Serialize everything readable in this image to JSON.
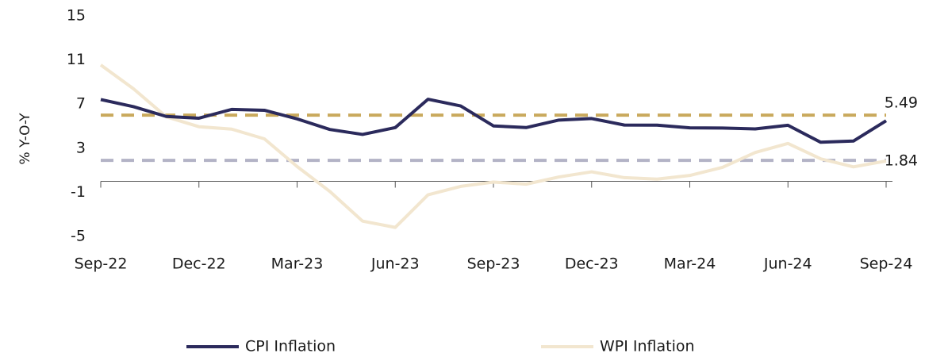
{
  "chart_data": {
    "type": "line",
    "y_label": "% Y-O-Y",
    "categories": [
      "Sep-22",
      null,
      null,
      "Dec-22",
      null,
      null,
      "Mar-23",
      null,
      null,
      "Jun-23",
      null,
      null,
      "Sep-23",
      null,
      null,
      "Dec-23",
      null,
      null,
      "Mar-24",
      null,
      null,
      "Jun-24",
      null,
      null,
      "Sep-24"
    ],
    "series": [
      {
        "name": "CPI Inflation",
        "color": "#2b2a5c",
        "values": [
          7.41,
          6.77,
          5.88,
          5.72,
          6.52,
          6.44,
          5.66,
          4.7,
          4.25,
          4.87,
          7.44,
          6.83,
          5.02,
          4.87,
          5.55,
          5.69,
          5.1,
          5.09,
          4.85,
          4.83,
          4.75,
          5.08,
          3.54,
          3.65,
          5.49
        ]
      },
      {
        "name": "WPI Inflation",
        "color": "#f2e6cf",
        "values": [
          10.55,
          8.39,
          5.85,
          4.95,
          4.73,
          3.85,
          1.34,
          -0.92,
          -3.61,
          -4.18,
          -1.23,
          -0.46,
          -0.07,
          -0.26,
          0.39,
          0.86,
          0.33,
          0.2,
          0.53,
          1.26,
          2.61,
          3.43,
          2.04,
          1.31,
          1.84
        ]
      }
    ],
    "reference_lines": [
      {
        "value": 6,
        "color": "#c9a95c"
      },
      {
        "value": 1.9,
        "color": "#b3b3c6"
      }
    ],
    "ylim": [
      -5,
      15
    ],
    "yticks": [
      -5,
      -1,
      3,
      7,
      11,
      15
    ],
    "grid": false
  }
}
